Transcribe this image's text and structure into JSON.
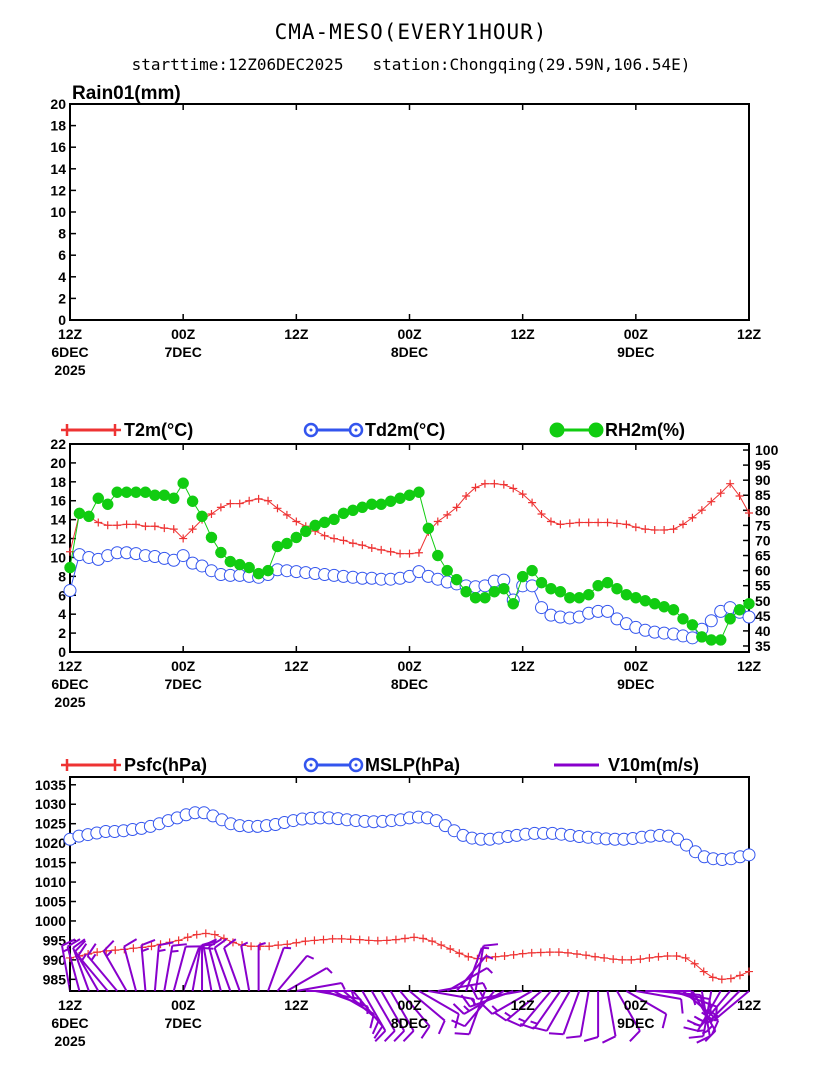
{
  "header": {
    "title": "CMA-MESO(EVERY1HOUR)",
    "subtitle": "starttime:12Z06DEC2025   station:Chongqing(29.59N,106.54E)"
  },
  "time_ticks": [
    {
      "h": 0,
      "top": "12Z",
      "mid": "6DEC",
      "bot": "2025"
    },
    {
      "h": 12,
      "top": "00Z",
      "mid": "7DEC",
      "bot": ""
    },
    {
      "h": 24,
      "top": "12Z",
      "mid": "",
      "bot": ""
    },
    {
      "h": 36,
      "top": "00Z",
      "mid": "8DEC",
      "bot": ""
    },
    {
      "h": 48,
      "top": "12Z",
      "mid": "",
      "bot": ""
    },
    {
      "h": 60,
      "top": "00Z",
      "mid": "9DEC",
      "bot": ""
    },
    {
      "h": 72,
      "top": "12Z",
      "mid": "",
      "bot": ""
    }
  ],
  "colors": {
    "temp": "#ee3333",
    "dew": "#3355ee",
    "rh": "#11cc11",
    "wind": "#8800cc",
    "frame": "#000000"
  },
  "chart_data": [
    {
      "type": "line",
      "title": "Rain01(mm)",
      "x_hours": [
        0,
        72
      ],
      "ylim": [
        0,
        20
      ],
      "yticks": [
        0,
        2,
        4,
        6,
        8,
        10,
        12,
        14,
        16,
        18,
        20
      ],
      "series": [
        {
          "name": "Rain01(mm)",
          "values": []
        }
      ]
    },
    {
      "type": "line",
      "ylim": [
        0,
        22
      ],
      "yticks": [
        0,
        2,
        4,
        6,
        8,
        10,
        12,
        14,
        16,
        18,
        20,
        22
      ],
      "y2lim": [
        33,
        102
      ],
      "y2ticks": [
        35,
        40,
        45,
        50,
        55,
        60,
        65,
        70,
        75,
        80,
        85,
        90,
        95,
        100
      ],
      "legend": [
        "T2m(°C)",
        "Td2m(°C)",
        "RH2m(%)"
      ],
      "series": [
        {
          "name": "T2m(°C)",
          "axis": "left",
          "values": [
            10.6,
            14.6,
            14.3,
            13.7,
            13.4,
            13.4,
            13.5,
            13.5,
            13.3,
            13.3,
            13.1,
            13.0,
            12.0,
            13.0,
            14.0,
            14.6,
            15.3,
            15.7,
            15.7,
            16.0,
            16.2,
            16.0,
            15.2,
            14.5,
            13.8,
            13.3,
            12.8,
            12.3,
            12.0,
            11.8,
            11.5,
            11.3,
            11.0,
            10.8,
            10.6,
            10.4,
            10.4,
            10.5,
            12.7,
            13.8,
            14.5,
            15.3,
            16.5,
            17.4,
            17.8,
            17.8,
            17.7,
            17.3,
            16.7,
            15.8,
            14.6,
            13.8,
            13.5,
            13.6,
            13.7,
            13.7,
            13.7,
            13.7,
            13.6,
            13.5,
            13.2,
            13.0,
            12.9,
            12.9,
            13.0,
            13.5,
            14.2,
            15.0,
            15.9,
            16.8,
            17.8,
            16.5,
            14.7
          ]
        },
        {
          "name": "Td2m(°C)",
          "axis": "left",
          "values": [
            6.5,
            10.3,
            10.0,
            9.8,
            10.2,
            10.5,
            10.5,
            10.4,
            10.2,
            10.1,
            9.9,
            9.7,
            10.2,
            9.4,
            9.1,
            8.6,
            8.2,
            8.1,
            8.1,
            8.0,
            7.9,
            8.2,
            8.7,
            8.6,
            8.5,
            8.4,
            8.3,
            8.2,
            8.1,
            8.0,
            7.9,
            7.8,
            7.8,
            7.7,
            7.7,
            7.8,
            8.0,
            8.5,
            8.0,
            7.7,
            7.4,
            7.2,
            7.0,
            6.9,
            7.0,
            7.5,
            7.6,
            5.5,
            7.0,
            7.0,
            4.7,
            3.9,
            3.7,
            3.6,
            3.7,
            4.1,
            4.3,
            4.3,
            3.5,
            3.0,
            2.6,
            2.3,
            2.1,
            2.0,
            1.9,
            1.7,
            1.5,
            2.4,
            3.3,
            4.3,
            4.7,
            4.2,
            3.7
          ]
        },
        {
          "name": "RH2m(%)",
          "axis": "right",
          "values": [
            61,
            79,
            78,
            84,
            82,
            86,
            86,
            86,
            86,
            85,
            85,
            84,
            89,
            83,
            78,
            71,
            66,
            63,
            62,
            61,
            59,
            60,
            68,
            69,
            71,
            73,
            75,
            76,
            77,
            79,
            80,
            81,
            82,
            82,
            83,
            84,
            85,
            86,
            74,
            65,
            60,
            57,
            53,
            51,
            51,
            53,
            54,
            49,
            58,
            60,
            56,
            54,
            53,
            51,
            51,
            52,
            55,
            56,
            54,
            52,
            51,
            50,
            49,
            48,
            47,
            44,
            42,
            38,
            37,
            37,
            44,
            47,
            49
          ]
        }
      ]
    },
    {
      "type": "line",
      "ylim": [
        982,
        1037
      ],
      "yticks": [
        985,
        990,
        995,
        1000,
        1005,
        1010,
        1015,
        1020,
        1025,
        1030,
        1035
      ],
      "legend": [
        "Psfc(hPa)",
        "MSLP(hPa)",
        "V10m(m/s)"
      ],
      "series": [
        {
          "name": "Psfc(hPa)",
          "values": [
            990.5,
            991.0,
            991.5,
            992.0,
            992.3,
            992.5,
            992.7,
            993.0,
            993.2,
            993.5,
            994.0,
            994.5,
            995.0,
            995.8,
            996.5,
            996.8,
            996.5,
            995.5,
            994.5,
            993.8,
            993.5,
            993.5,
            993.5,
            993.8,
            994.0,
            994.4,
            994.8,
            995.0,
            995.2,
            995.4,
            995.4,
            995.3,
            995.2,
            995.0,
            994.9,
            995.0,
            995.2,
            995.5,
            995.8,
            995.5,
            994.8,
            993.8,
            992.8,
            991.7,
            990.8,
            990.3,
            990.5,
            990.8,
            991.0,
            991.3,
            991.6,
            991.8,
            991.9,
            992.0,
            992.0,
            991.8,
            991.5,
            991.2,
            990.8,
            990.5,
            990.2,
            990.0,
            990.0,
            990.2,
            990.5,
            990.8,
            991.0,
            991.0,
            990.5,
            989.0,
            987.0,
            985.5,
            985.0,
            985.2,
            986.0,
            987.0
          ]
        },
        {
          "name": "MSLP(hPa)",
          "values": [
            1021.0,
            1021.8,
            1022.2,
            1022.6,
            1023.0,
            1023.0,
            1023.2,
            1023.5,
            1023.8,
            1024.3,
            1025.0,
            1025.8,
            1026.5,
            1027.3,
            1027.8,
            1027.8,
            1027.0,
            1026.0,
            1025.0,
            1024.5,
            1024.3,
            1024.3,
            1024.5,
            1024.8,
            1025.3,
            1025.8,
            1026.2,
            1026.4,
            1026.5,
            1026.5,
            1026.3,
            1026.0,
            1025.8,
            1025.6,
            1025.5,
            1025.6,
            1025.8,
            1026.0,
            1026.5,
            1026.7,
            1026.5,
            1025.8,
            1024.5,
            1023.2,
            1022.0,
            1021.3,
            1021.0,
            1021.0,
            1021.3,
            1021.7,
            1022.0,
            1022.3,
            1022.5,
            1022.5,
            1022.5,
            1022.3,
            1022.0,
            1021.7,
            1021.5,
            1021.3,
            1021.1,
            1021.0,
            1021.0,
            1021.2,
            1021.5,
            1021.8,
            1022.0,
            1021.8,
            1021.0,
            1019.5,
            1017.8,
            1016.5,
            1016.0,
            1015.8,
            1016.0,
            1016.5,
            1017.0
          ]
        },
        {
          "name": "V10m(m/s)",
          "wind_barbs": [
            {
              "dir": 350,
              "kt": 6
            },
            {
              "dir": 345,
              "kt": 5
            },
            {
              "dir": 340,
              "kt": 5
            },
            {
              "dir": 330,
              "kt": 5
            },
            {
              "dir": 320,
              "kt": 6
            },
            {
              "dir": 320,
              "kt": 6
            },
            {
              "dir": 330,
              "kt": 6
            },
            {
              "dir": 345,
              "kt": 5
            },
            {
              "dir": 355,
              "kt": 6
            },
            {
              "dir": 5,
              "kt": 6
            },
            {
              "dir": 10,
              "kt": 6
            },
            {
              "dir": 15,
              "kt": 5
            },
            {
              "dir": 20,
              "kt": 5
            },
            {
              "dir": 10,
              "kt": 5
            },
            {
              "dir": 0,
              "kt": 4
            },
            {
              "dir": 350,
              "kt": 4
            },
            {
              "dir": 345,
              "kt": 4
            },
            {
              "dir": 340,
              "kt": 4
            },
            {
              "dir": 340,
              "kt": 4
            },
            {
              "dir": 350,
              "kt": 3
            },
            {
              "dir": 0,
              "kt": 3
            },
            {
              "dir": 20,
              "kt": 3
            },
            {
              "dir": 40,
              "kt": 3
            },
            {
              "dir": 60,
              "kt": 3
            },
            {
              "dir": 80,
              "kt": 3
            },
            {
              "dir": 90,
              "kt": 3
            },
            {
              "dir": 100,
              "kt": 3
            },
            {
              "dir": 110,
              "kt": 3
            },
            {
              "dir": 120,
              "kt": 4
            },
            {
              "dir": 130,
              "kt": 4
            },
            {
              "dir": 140,
              "kt": 4
            },
            {
              "dir": 150,
              "kt": 4
            },
            {
              "dir": 150,
              "kt": 4
            },
            {
              "dir": 150,
              "kt": 4
            },
            {
              "dir": 150,
              "kt": 4
            },
            {
              "dir": 140,
              "kt": 4
            },
            {
              "dir": 130,
              "kt": 4
            },
            {
              "dir": 120,
              "kt": 4
            },
            {
              "dir": 100,
              "kt": 3
            },
            {
              "dir": 80,
              "kt": 3
            },
            {
              "dir": 60,
              "kt": 3
            },
            {
              "dir": 40,
              "kt": 3
            },
            {
              "dir": 20,
              "kt": 3
            },
            {
              "dir": 10,
              "kt": 4
            },
            {
              "dir": 200,
              "kt": 4
            },
            {
              "dir": 220,
              "kt": 5
            },
            {
              "dir": 240,
              "kt": 6
            },
            {
              "dir": 250,
              "kt": 6
            },
            {
              "dir": 260,
              "kt": 6
            },
            {
              "dir": 240,
              "kt": 6
            },
            {
              "dir": 230,
              "kt": 6
            },
            {
              "dir": 220,
              "kt": 6
            },
            {
              "dir": 215,
              "kt": 6
            },
            {
              "dir": 210,
              "kt": 5
            },
            {
              "dir": 200,
              "kt": 5
            },
            {
              "dir": 190,
              "kt": 5
            },
            {
              "dir": 180,
              "kt": 5
            },
            {
              "dir": 170,
              "kt": 4
            },
            {
              "dir": 150,
              "kt": 4
            },
            {
              "dir": 120,
              "kt": 4
            },
            {
              "dir": 100,
              "kt": 4
            },
            {
              "dir": 90,
              "kt": 4
            },
            {
              "dir": 95,
              "kt": 5
            },
            {
              "dir": 100,
              "kt": 5
            },
            {
              "dir": 110,
              "kt": 5
            },
            {
              "dir": 130,
              "kt": 6
            },
            {
              "dir": 150,
              "kt": 6
            },
            {
              "dir": 170,
              "kt": 6
            },
            {
              "dir": 190,
              "kt": 6
            },
            {
              "dir": 210,
              "kt": 6
            },
            {
              "dir": 220,
              "kt": 6
            },
            {
              "dir": 225,
              "kt": 6
            },
            {
              "dir": 230,
              "kt": 6
            }
          ]
        }
      ]
    }
  ]
}
